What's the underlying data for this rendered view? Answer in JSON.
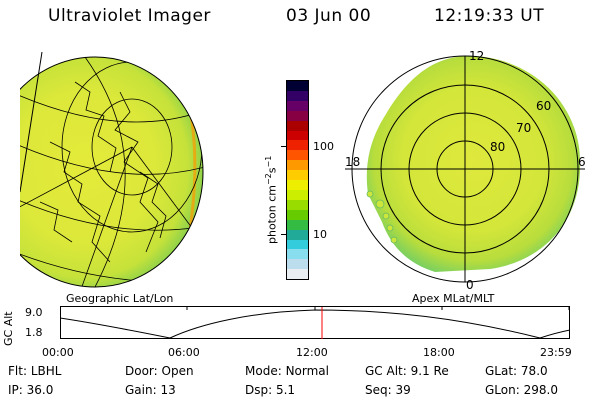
{
  "header": {
    "title": "Ultraviolet Imager",
    "date": "03 Jun 00",
    "time": "12:19:33 UT"
  },
  "left_panel": {
    "caption": "Geographic Lat/Lon"
  },
  "right_panel": {
    "caption": "Apex MLat/MLT",
    "mlt_labels": [
      "12",
      "18",
      "6",
      "0"
    ],
    "lat_labels": [
      "60",
      "70",
      "80"
    ]
  },
  "colorbar": {
    "unit": "photon cm",
    "unit_exp1": "−2",
    "unit_s": "s",
    "unit_exp2": "−1",
    "tick_labels": [
      "100",
      "10"
    ],
    "colors": [
      "#000033",
      "#330066",
      "#660066",
      "#880044",
      "#aa0000",
      "#cc0000",
      "#ee2200",
      "#ff5500",
      "#ff9900",
      "#ffcc00",
      "#eeee00",
      "#ccee00",
      "#99dd00",
      "#66cc00",
      "#33bb44",
      "#22aa99",
      "#33ccdd",
      "#88ddee",
      "#bbddee",
      "#e8eef2"
    ]
  },
  "altitude_plot": {
    "axis_label": "GC Alt",
    "y_ticks": [
      "9.0",
      "1.8"
    ],
    "x_ticks": [
      "00:00",
      "06:00",
      "12:00",
      "18:00",
      "23:59"
    ],
    "marker_color": "#ff0000"
  },
  "info_rows": [
    [
      {
        "label": "Flt:",
        "value": "LBHL"
      },
      {
        "label": "Door:",
        "value": "Open"
      },
      {
        "label": "Mode:",
        "value": "Normal"
      },
      {
        "label": "GC Alt:",
        "value": "9.1 Re"
      },
      {
        "label": "GLat:",
        "value": "78.0"
      }
    ],
    [
      {
        "label": "IP:",
        "value": "36.0"
      },
      {
        "label": "Gain:",
        "value": "13"
      },
      {
        "label": "Dsp:",
        "value": "5.1"
      },
      {
        "label": "Seq:",
        "value": "39"
      },
      {
        "label": "GLon:",
        "value": "298.0"
      }
    ]
  ]
}
